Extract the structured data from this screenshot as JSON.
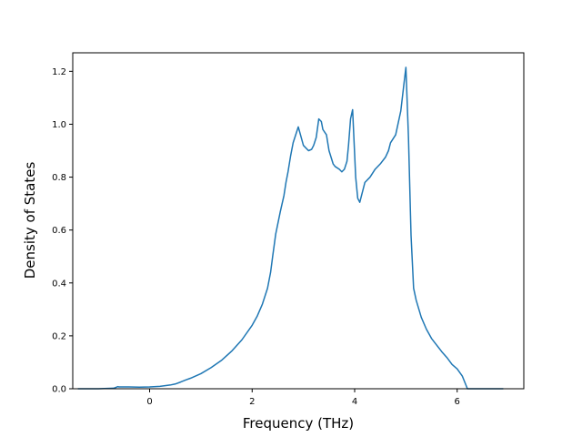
{
  "chart_data": {
    "type": "line",
    "title": "",
    "xlabel": "Frequency (THz)",
    "ylabel": "Density of States",
    "xlim": [
      -1.5,
      7.3
    ],
    "ylim": [
      0,
      1.27
    ],
    "x_ticks": [
      0,
      2,
      4,
      6
    ],
    "x_tick_labels": [
      "0",
      "2",
      "4",
      "6"
    ],
    "y_ticks": [
      0.0,
      0.2,
      0.4,
      0.6,
      0.8,
      1.0,
      1.2
    ],
    "y_tick_labels": [
      "0.0",
      "0.2",
      "0.4",
      "0.6",
      "0.8",
      "1.0",
      "1.2"
    ],
    "grid": false,
    "legend": "none",
    "line_color": "#1f77b4",
    "series": [
      {
        "x": [
          -1.4,
          -1.0,
          -0.7,
          -0.62,
          -0.6,
          -0.4,
          -0.2,
          0.0,
          0.2,
          0.4,
          0.5,
          0.6,
          0.7,
          0.8,
          1.0,
          1.2,
          1.4,
          1.6,
          1.8,
          2.0,
          2.1,
          2.2,
          2.3,
          2.36,
          2.4,
          2.46,
          2.55,
          2.62,
          2.66,
          2.7,
          2.75,
          2.8,
          2.9,
          3.0,
          3.1,
          3.16,
          3.2,
          3.25,
          3.3,
          3.35,
          3.38,
          3.45,
          3.5,
          3.58,
          3.62,
          3.7,
          3.75,
          3.8,
          3.85,
          3.88,
          3.92,
          3.96,
          4.02,
          4.06,
          4.1,
          4.2,
          4.3,
          4.4,
          4.5,
          4.6,
          4.66,
          4.7,
          4.8,
          4.9,
          4.96,
          5.0,
          5.05,
          5.1,
          5.15,
          5.2,
          5.3,
          5.4,
          5.5,
          5.6,
          5.7,
          5.8,
          5.9,
          6.0,
          6.1,
          6.2,
          6.25,
          6.3,
          6.5,
          6.9
        ],
        "y": [
          0.0,
          0.0,
          0.002,
          0.008,
          0.007,
          0.007,
          0.006,
          0.007,
          0.009,
          0.014,
          0.018,
          0.025,
          0.033,
          0.04,
          0.057,
          0.08,
          0.107,
          0.142,
          0.185,
          0.24,
          0.275,
          0.32,
          0.38,
          0.44,
          0.5,
          0.585,
          0.67,
          0.73,
          0.78,
          0.82,
          0.88,
          0.93,
          0.99,
          0.92,
          0.9,
          0.905,
          0.92,
          0.95,
          1.02,
          1.01,
          0.98,
          0.96,
          0.9,
          0.85,
          0.84,
          0.83,
          0.82,
          0.83,
          0.86,
          0.92,
          1.02,
          1.055,
          0.8,
          0.72,
          0.705,
          0.78,
          0.8,
          0.83,
          0.85,
          0.875,
          0.9,
          0.93,
          0.96,
          1.05,
          1.15,
          1.215,
          0.95,
          0.58,
          0.38,
          0.335,
          0.27,
          0.225,
          0.19,
          0.165,
          0.14,
          0.118,
          0.092,
          0.075,
          0.048,
          0.0,
          0.0,
          0.0,
          0.0,
          0.0
        ]
      }
    ]
  }
}
